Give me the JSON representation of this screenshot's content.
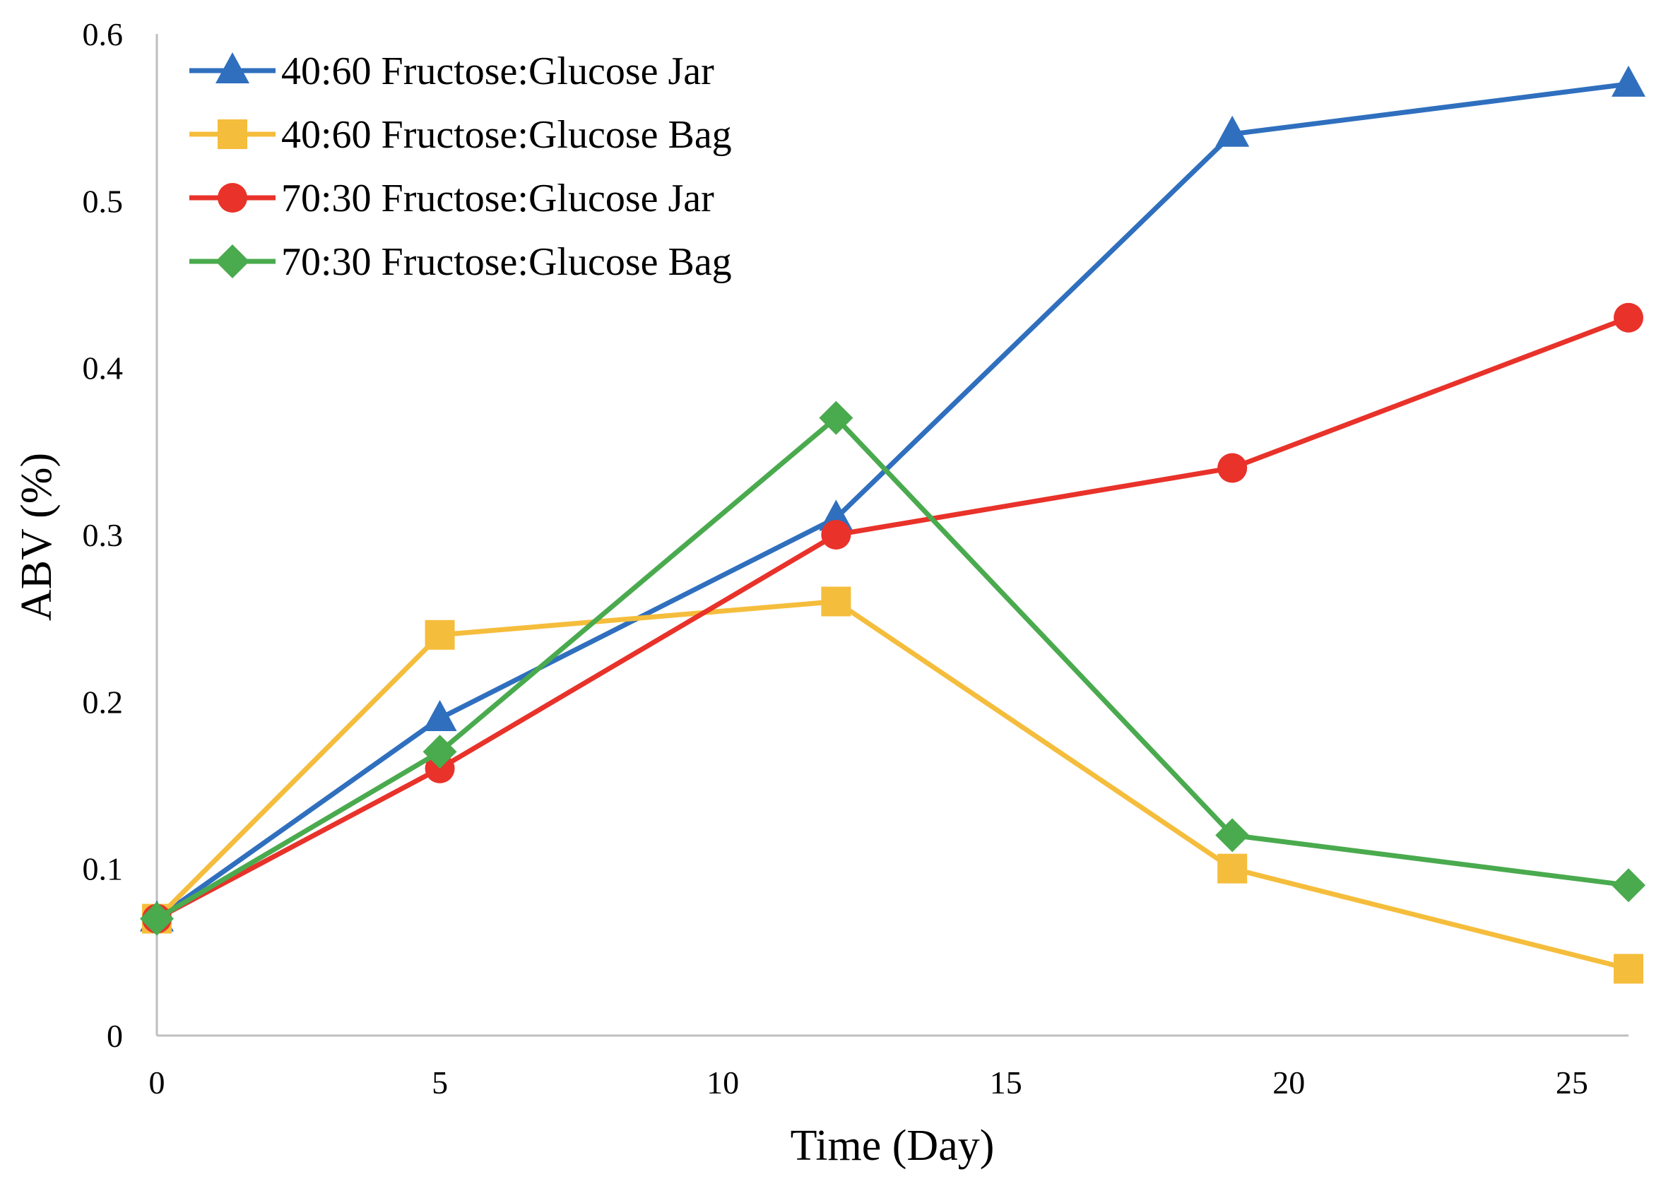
{
  "chart_data": {
    "type": "line",
    "xlabel": "Time (Day)",
    "ylabel": "ABV (%)",
    "xlim": [
      0,
      26
    ],
    "ylim": [
      0,
      0.6
    ],
    "x_ticks": [
      0,
      5,
      10,
      15,
      20,
      25
    ],
    "y_ticks": [
      0,
      0.1,
      0.2,
      0.3,
      0.4,
      0.5,
      0.6
    ],
    "x_tick_labels": [
      "0",
      "5",
      "10",
      "15",
      "20",
      "25"
    ],
    "y_tick_labels": [
      "0",
      "0.1",
      "0.2",
      "0.3",
      "0.4",
      "0.5",
      "0.6"
    ],
    "grid": false,
    "legend_position": "top-left",
    "x": [
      0,
      5,
      12,
      19,
      26
    ],
    "series": [
      {
        "name": "40:60 Fructose:Glucose Jar",
        "color": "#2f6fbe",
        "marker": "triangle",
        "values": [
          0.07,
          0.19,
          0.31,
          0.54,
          0.57
        ]
      },
      {
        "name": "40:60 Fructose:Glucose Bag",
        "color": "#f5bd3c",
        "marker": "square",
        "values": [
          0.07,
          0.24,
          0.26,
          0.1,
          0.04
        ]
      },
      {
        "name": "70:30 Fructose:Glucose Jar",
        "color": "#e8322a",
        "marker": "circle",
        "values": [
          0.07,
          0.16,
          0.3,
          0.34,
          0.43
        ]
      },
      {
        "name": "70:30 Fructose:Glucose Bag",
        "color": "#4aaa4e",
        "marker": "diamond",
        "values": [
          0.07,
          0.17,
          0.37,
          0.12,
          0.09
        ]
      }
    ]
  }
}
